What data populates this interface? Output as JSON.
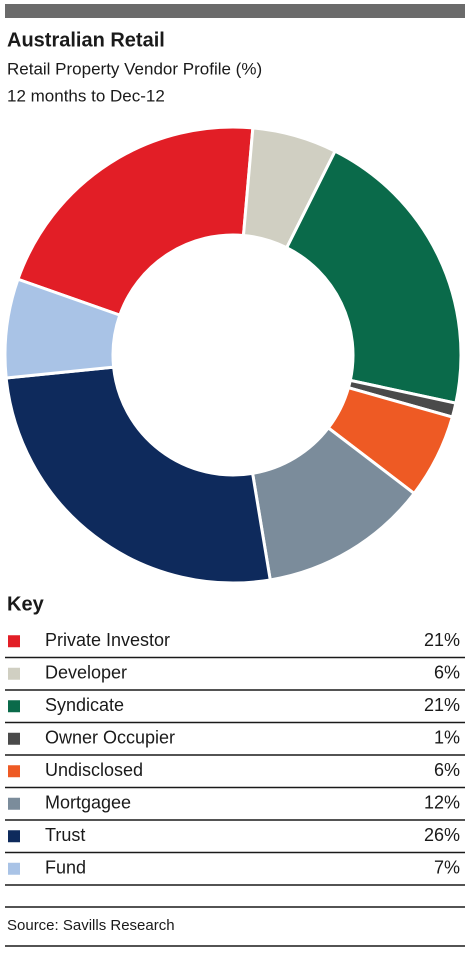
{
  "chart_data": {
    "type": "donut",
    "title": "Australian Retail",
    "subtitle": [
      "Retail Property Vendor Profile (%)",
      "12 months to Dec-12"
    ],
    "categories": [
      "Private Investor",
      "Developer",
      "Syndicate",
      "Owner Occupier",
      "Undisclosed",
      "Mortgagee",
      "Trust",
      "Fund"
    ],
    "values": [
      21,
      6,
      21,
      1,
      6,
      12,
      26,
      7
    ],
    "value_labels": [
      "21%",
      "6%",
      "21%",
      "1%",
      "6%",
      "12%",
      "26%",
      "7%"
    ],
    "colors": [
      "#e21e26",
      "#d0cfc2",
      "#0a6a4a",
      "#4a4a4a",
      "#ee5a24",
      "#7b8c9b",
      "#0e2a5c",
      "#a9c3e6"
    ],
    "legend_title": "Key",
    "source": "Source: Savills Research"
  }
}
